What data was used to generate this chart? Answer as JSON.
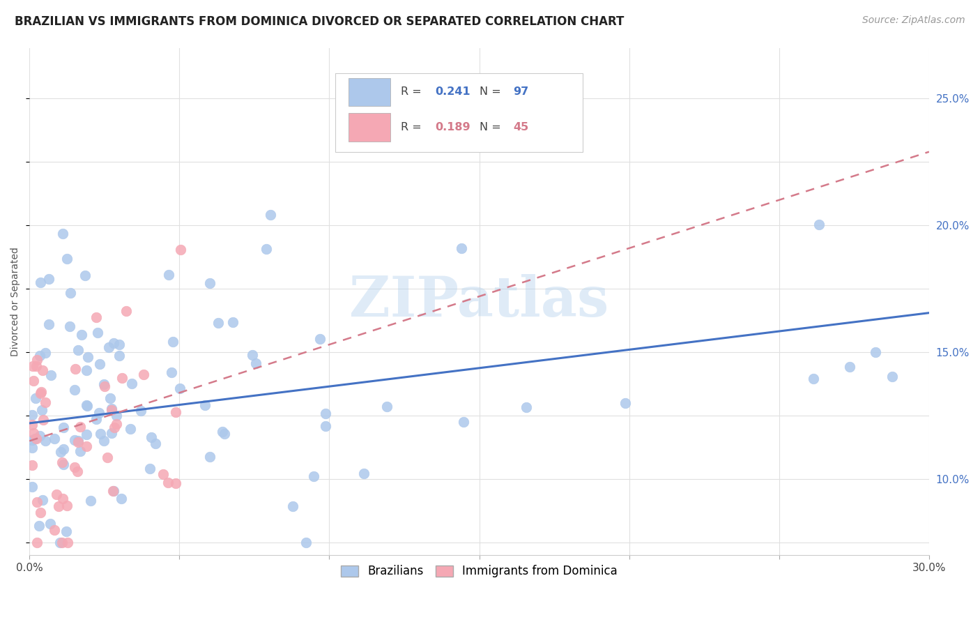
{
  "title": "BRAZILIAN VS IMMIGRANTS FROM DOMINICA DIVORCED OR SEPARATED CORRELATION CHART",
  "source": "Source: ZipAtlas.com",
  "ylabel": "Divorced or Separated",
  "xlim": [
    0.0,
    0.3
  ],
  "ylim": [
    0.07,
    0.27
  ],
  "y_ticks_right": [
    0.1,
    0.15,
    0.2,
    0.25
  ],
  "y_tick_labels_right": [
    "10.0%",
    "15.0%",
    "20.0%",
    "25.0%"
  ],
  "r_brazilian": 0.241,
  "n_brazilian": 97,
  "r_dominica": 0.189,
  "n_dominica": 45,
  "color_brazilian": "#adc8eb",
  "color_dominica": "#f5a8b4",
  "trendline_brazilian_color": "#4472c4",
  "trendline_dominica_color": "#d47a8a",
  "watermark": "ZIPatlas",
  "legend_label_1": "Brazilians",
  "legend_label_2": "Immigrants from Dominica",
  "background_color": "#ffffff",
  "grid_color": "#e0e0e0",
  "braz_intercept": 0.122,
  "braz_slope": 0.145,
  "dom_intercept": 0.115,
  "dom_slope": 0.38,
  "title_fontsize": 12,
  "source_fontsize": 10,
  "axis_label_fontsize": 10,
  "tick_fontsize": 11
}
